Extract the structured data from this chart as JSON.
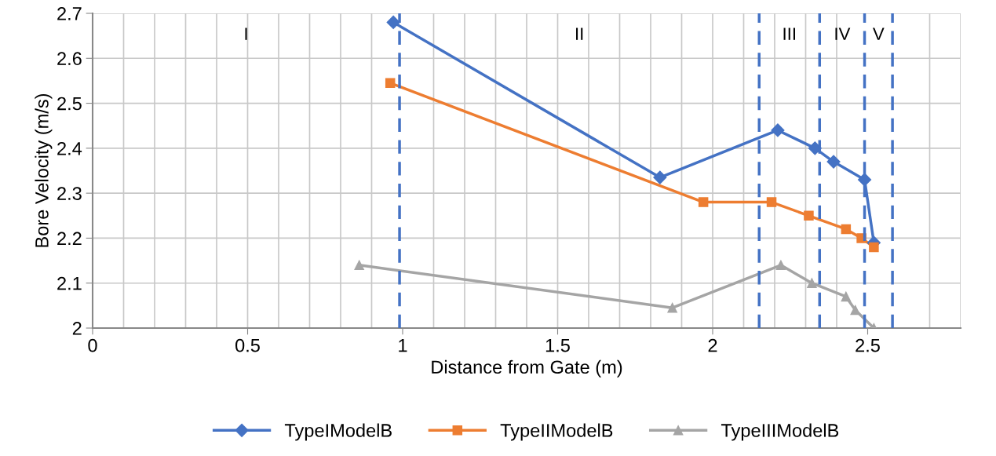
{
  "chart_data": {
    "type": "line",
    "xlabel": "Distance from Gate (m)",
    "ylabel": "Bore Velocity (m/s)",
    "xlim": [
      0,
      2.8
    ],
    "xticks": [
      0,
      0.5,
      1,
      1.5,
      2,
      2.5
    ],
    "ylim": [
      2,
      2.7
    ],
    "yticks": [
      2,
      2.1,
      2.2,
      2.3,
      2.4,
      2.5,
      2.6,
      2.7
    ],
    "grid": true,
    "legend": "bottom",
    "line_style": "solid",
    "series": [
      {
        "name": "TypeIModelB",
        "color": "#4472c4",
        "marker": "diamond",
        "x": [
          0.97,
          1.83,
          2.21,
          2.33,
          2.39,
          2.49,
          2.52
        ],
        "values": [
          2.68,
          2.335,
          2.44,
          2.4,
          2.37,
          2.33,
          2.19
        ]
      },
      {
        "name": "TypeIIModelB",
        "color": "#ed7d31",
        "marker": "square",
        "x": [
          0.96,
          1.97,
          2.19,
          2.31,
          2.43,
          2.48,
          2.52
        ],
        "values": [
          2.545,
          2.28,
          2.28,
          2.25,
          2.22,
          2.2,
          2.18
        ]
      },
      {
        "name": "TypeIIIModelB",
        "color": "#a5a5a5",
        "marker": "triangle",
        "x": [
          0.86,
          1.87,
          2.22,
          2.32,
          2.43,
          2.46,
          2.52
        ],
        "values": [
          2.14,
          2.045,
          2.14,
          2.1,
          2.07,
          2.04,
          2.0
        ]
      }
    ],
    "ref_lines": [
      {
        "axis": "x",
        "value": 0.99,
        "color": "#4472c4",
        "line_style": "dashed"
      },
      {
        "axis": "x",
        "value": 2.15,
        "color": "#4472c4",
        "line_style": "dashed"
      },
      {
        "axis": "x",
        "value": 2.345,
        "color": "#4472c4",
        "line_style": "dashed"
      },
      {
        "axis": "x",
        "value": 2.49,
        "color": "#4472c4",
        "line_style": "dashed"
      },
      {
        "axis": "x",
        "value": 2.58,
        "color": "#4472c4",
        "line_style": "dashed"
      }
    ],
    "annotations": [
      "I",
      "II",
      "III",
      "IV",
      "V"
    ]
  }
}
